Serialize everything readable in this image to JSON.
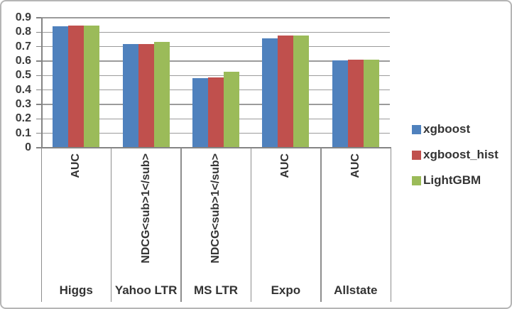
{
  "chart_data": {
    "type": "bar",
    "title": "",
    "xlabel": "",
    "ylabel": "",
    "ylim": [
      0,
      0.9
    ],
    "ytick_step": 0.1,
    "ytick_labels_top_to_bottom": [
      "0.9",
      "0.8",
      "0.7",
      "0.6",
      "0.5",
      "0.4",
      "0.3",
      "0.2",
      "0.1",
      "0"
    ],
    "grid": true,
    "legend_position": "right-middle",
    "categories": [
      {
        "dataset": "Higgs",
        "metric": "AUC"
      },
      {
        "dataset": "Yahoo LTR",
        "metric": "NDCG<sub>1</sub>"
      },
      {
        "dataset": "MS LTR",
        "metric": "NDCG<sub>1</sub>"
      },
      {
        "dataset": "Expo",
        "metric": "AUC"
      },
      {
        "dataset": "Allstate",
        "metric": "AUC"
      }
    ],
    "series": [
      {
        "name": "xgboost",
        "color": "#4F81BD",
        "values": [
          0.84,
          0.72,
          0.484,
          0.757,
          0.607
        ]
      },
      {
        "name": "xgboost_hist",
        "color": "#C0504D",
        "values": [
          0.845,
          0.72,
          0.489,
          0.778,
          0.609
        ]
      },
      {
        "name": "LightGBM",
        "color": "#9BBB59",
        "values": [
          0.845,
          0.732,
          0.524,
          0.778,
          0.609
        ]
      }
    ]
  },
  "style_colors": {
    "gridline": "#9b9b9b",
    "axis": "#848484",
    "text": "#333333",
    "frame_border": "#b5b5b5"
  }
}
